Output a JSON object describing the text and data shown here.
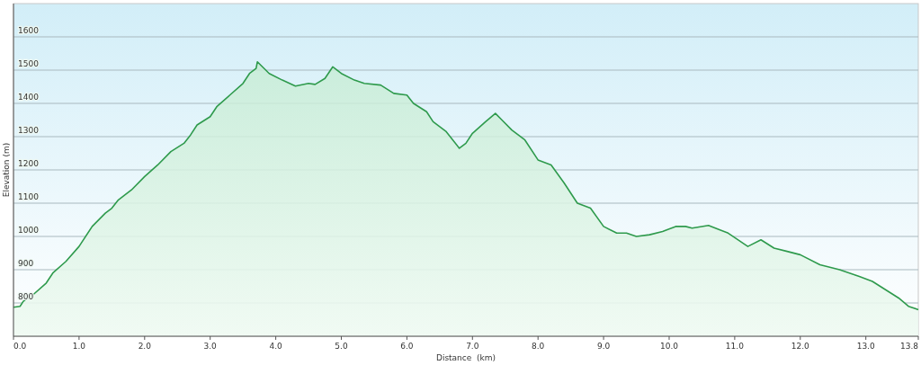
{
  "chart_data": {
    "type": "area",
    "xlabel": "Distance  (km)",
    "ylabel": "Elevation (m)",
    "xlim": [
      0,
      13.8
    ],
    "ylim": [
      700,
      1700
    ],
    "xticks": [
      {
        "value": 0,
        "label": "0.0"
      },
      {
        "value": 1,
        "label": "1.0"
      },
      {
        "value": 2,
        "label": "2.0"
      },
      {
        "value": 3,
        "label": "3.0"
      },
      {
        "value": 4,
        "label": "4.0"
      },
      {
        "value": 5,
        "label": "5.0"
      },
      {
        "value": 6,
        "label": "6.0"
      },
      {
        "value": 7,
        "label": "7.0"
      },
      {
        "value": 8,
        "label": "8.0"
      },
      {
        "value": 9,
        "label": "9.0"
      },
      {
        "value": 10,
        "label": "10.0"
      },
      {
        "value": 11,
        "label": "11.0"
      },
      {
        "value": 12,
        "label": "12.0"
      },
      {
        "value": 13,
        "label": "13.0"
      },
      {
        "value": 13.8,
        "label": "13.8"
      }
    ],
    "yticks": [
      800,
      900,
      1000,
      1100,
      1200,
      1300,
      1400,
      1500,
      1600
    ],
    "grid": "y",
    "series": [
      {
        "color": "#2e9a4c",
        "x": [
          0,
          0.1,
          0.15,
          0.3,
          0.5,
          0.6,
          0.8,
          1.0,
          1.2,
          1.4,
          1.5,
          1.6,
          1.8,
          2.0,
          2.2,
          2.4,
          2.6,
          2.7,
          2.8,
          3.0,
          3.1,
          3.3,
          3.5,
          3.6,
          3.7,
          3.72,
          3.9,
          4.1,
          4.3,
          4.5,
          4.6,
          4.75,
          4.87,
          5.0,
          5.2,
          5.35,
          5.6,
          5.8,
          6.0,
          6.1,
          6.3,
          6.4,
          6.5,
          6.6,
          6.8,
          6.9,
          7.0,
          7.2,
          7.35,
          7.45,
          7.6,
          7.8,
          8.0,
          8.2,
          8.4,
          8.6,
          8.8,
          9.0,
          9.2,
          9.35,
          9.5,
          9.7,
          9.9,
          10.1,
          10.25,
          10.35,
          10.6,
          10.9,
          11.2,
          11.4,
          11.6,
          11.8,
          12.0,
          12.3,
          12.6,
          12.9,
          13.1,
          13.3,
          13.5,
          13.65,
          13.8
        ],
        "values": [
          787,
          790,
          805,
          825,
          860,
          890,
          925,
          970,
          1030,
          1070,
          1085,
          1110,
          1140,
          1180,
          1215,
          1255,
          1280,
          1305,
          1335,
          1360,
          1390,
          1425,
          1460,
          1490,
          1505,
          1525,
          1490,
          1470,
          1452,
          1460,
          1457,
          1475,
          1510,
          1490,
          1470,
          1460,
          1455,
          1430,
          1425,
          1400,
          1375,
          1345,
          1330,
          1315,
          1265,
          1280,
          1310,
          1345,
          1370,
          1350,
          1320,
          1290,
          1230,
          1215,
          1160,
          1100,
          1085,
          1030,
          1010,
          1010,
          1000,
          1005,
          1015,
          1030,
          1030,
          1025,
          1033,
          1010,
          970,
          990,
          965,
          955,
          945,
          915,
          900,
          880,
          865,
          840,
          815,
          790,
          780
        ]
      }
    ]
  }
}
